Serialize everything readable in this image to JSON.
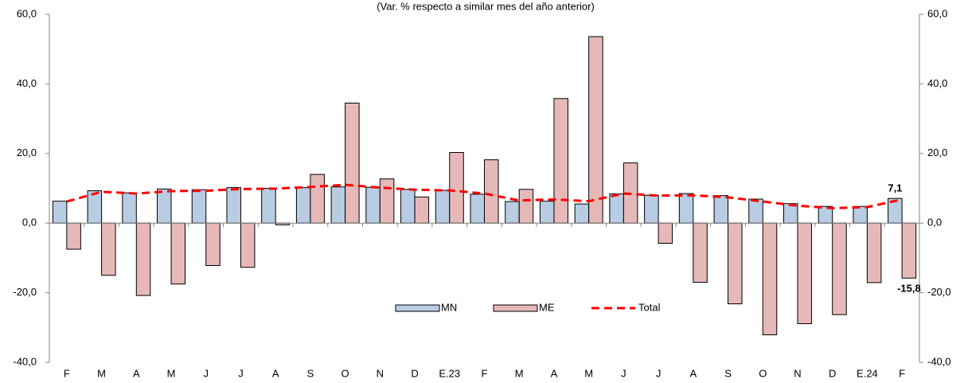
{
  "chart_data": {
    "type": "bar",
    "subtitle": "(Var. % respecto a similar mes del año anterior)",
    "categories": [
      "F",
      "M",
      "A",
      "M",
      "J",
      "J",
      "A",
      "S",
      "O",
      "N",
      "D",
      "E.23",
      "F",
      "M",
      "A",
      "M",
      "J",
      "J",
      "A",
      "S",
      "O",
      "N",
      "D",
      "E.24",
      "F"
    ],
    "series": [
      {
        "name": "MN",
        "type": "bar",
        "color": "#b8cce4",
        "values": [
          6.3,
          9.3,
          8.7,
          9.8,
          9.6,
          10.2,
          10.0,
          10.2,
          10.4,
          10.3,
          9.7,
          9.4,
          8.3,
          6.2,
          6.3,
          5.5,
          8.4,
          8.0,
          8.5,
          7.9,
          6.9,
          5.6,
          4.8,
          4.8,
          7.1
        ],
        "value_labels": [
          null,
          null,
          null,
          null,
          null,
          null,
          null,
          null,
          null,
          null,
          null,
          null,
          null,
          null,
          null,
          null,
          null,
          null,
          null,
          null,
          null,
          null,
          null,
          null,
          "7,1"
        ]
      },
      {
        "name": "ME",
        "type": "bar",
        "color": "#e6b9b8",
        "values": [
          -7.5,
          -15.0,
          -20.8,
          -17.5,
          -12.2,
          -12.7,
          -0.5,
          14.0,
          34.5,
          12.7,
          7.5,
          20.3,
          18.2,
          9.7,
          35.8,
          53.6,
          17.3,
          -5.8,
          -17.0,
          -23.2,
          -32.1,
          -28.9,
          -26.3,
          -17.1,
          -15.8
        ],
        "value_labels": [
          null,
          null,
          null,
          null,
          null,
          null,
          null,
          null,
          null,
          null,
          null,
          null,
          null,
          null,
          null,
          null,
          null,
          null,
          null,
          null,
          null,
          null,
          null,
          null,
          "-15,8"
        ]
      },
      {
        "name": "Total",
        "type": "line",
        "color": "#ff0000",
        "values": [
          6.2,
          9.0,
          8.5,
          9.2,
          9.3,
          9.8,
          9.9,
          10.4,
          11.0,
          10.2,
          9.6,
          9.4,
          8.5,
          6.5,
          6.8,
          6.3,
          8.5,
          7.9,
          8.0,
          7.4,
          6.2,
          5.0,
          4.3,
          4.6,
          6.8
        ]
      }
    ],
    "ylim": [
      -40,
      60
    ],
    "yticks": [
      {
        "value": -40,
        "label": "-40,0"
      },
      {
        "value": -20,
        "label": "-20,0"
      },
      {
        "value": 0,
        "label": "0,0"
      },
      {
        "value": 20,
        "label": "20,0"
      },
      {
        "value": 40,
        "label": "40,0"
      },
      {
        "value": 60,
        "label": "60,0"
      }
    ],
    "y2lim": [
      -40,
      60
    ],
    "y2ticks": [
      {
        "value": -40,
        "label": "-40,0"
      },
      {
        "value": -20,
        "label": "-20,0"
      },
      {
        "value": 0,
        "label": "0,0"
      },
      {
        "value": 20,
        "label": "20,0"
      },
      {
        "value": 40,
        "label": "40,0"
      },
      {
        "value": 60,
        "label": "60,0"
      }
    ],
    "legend": "bottom-center"
  }
}
